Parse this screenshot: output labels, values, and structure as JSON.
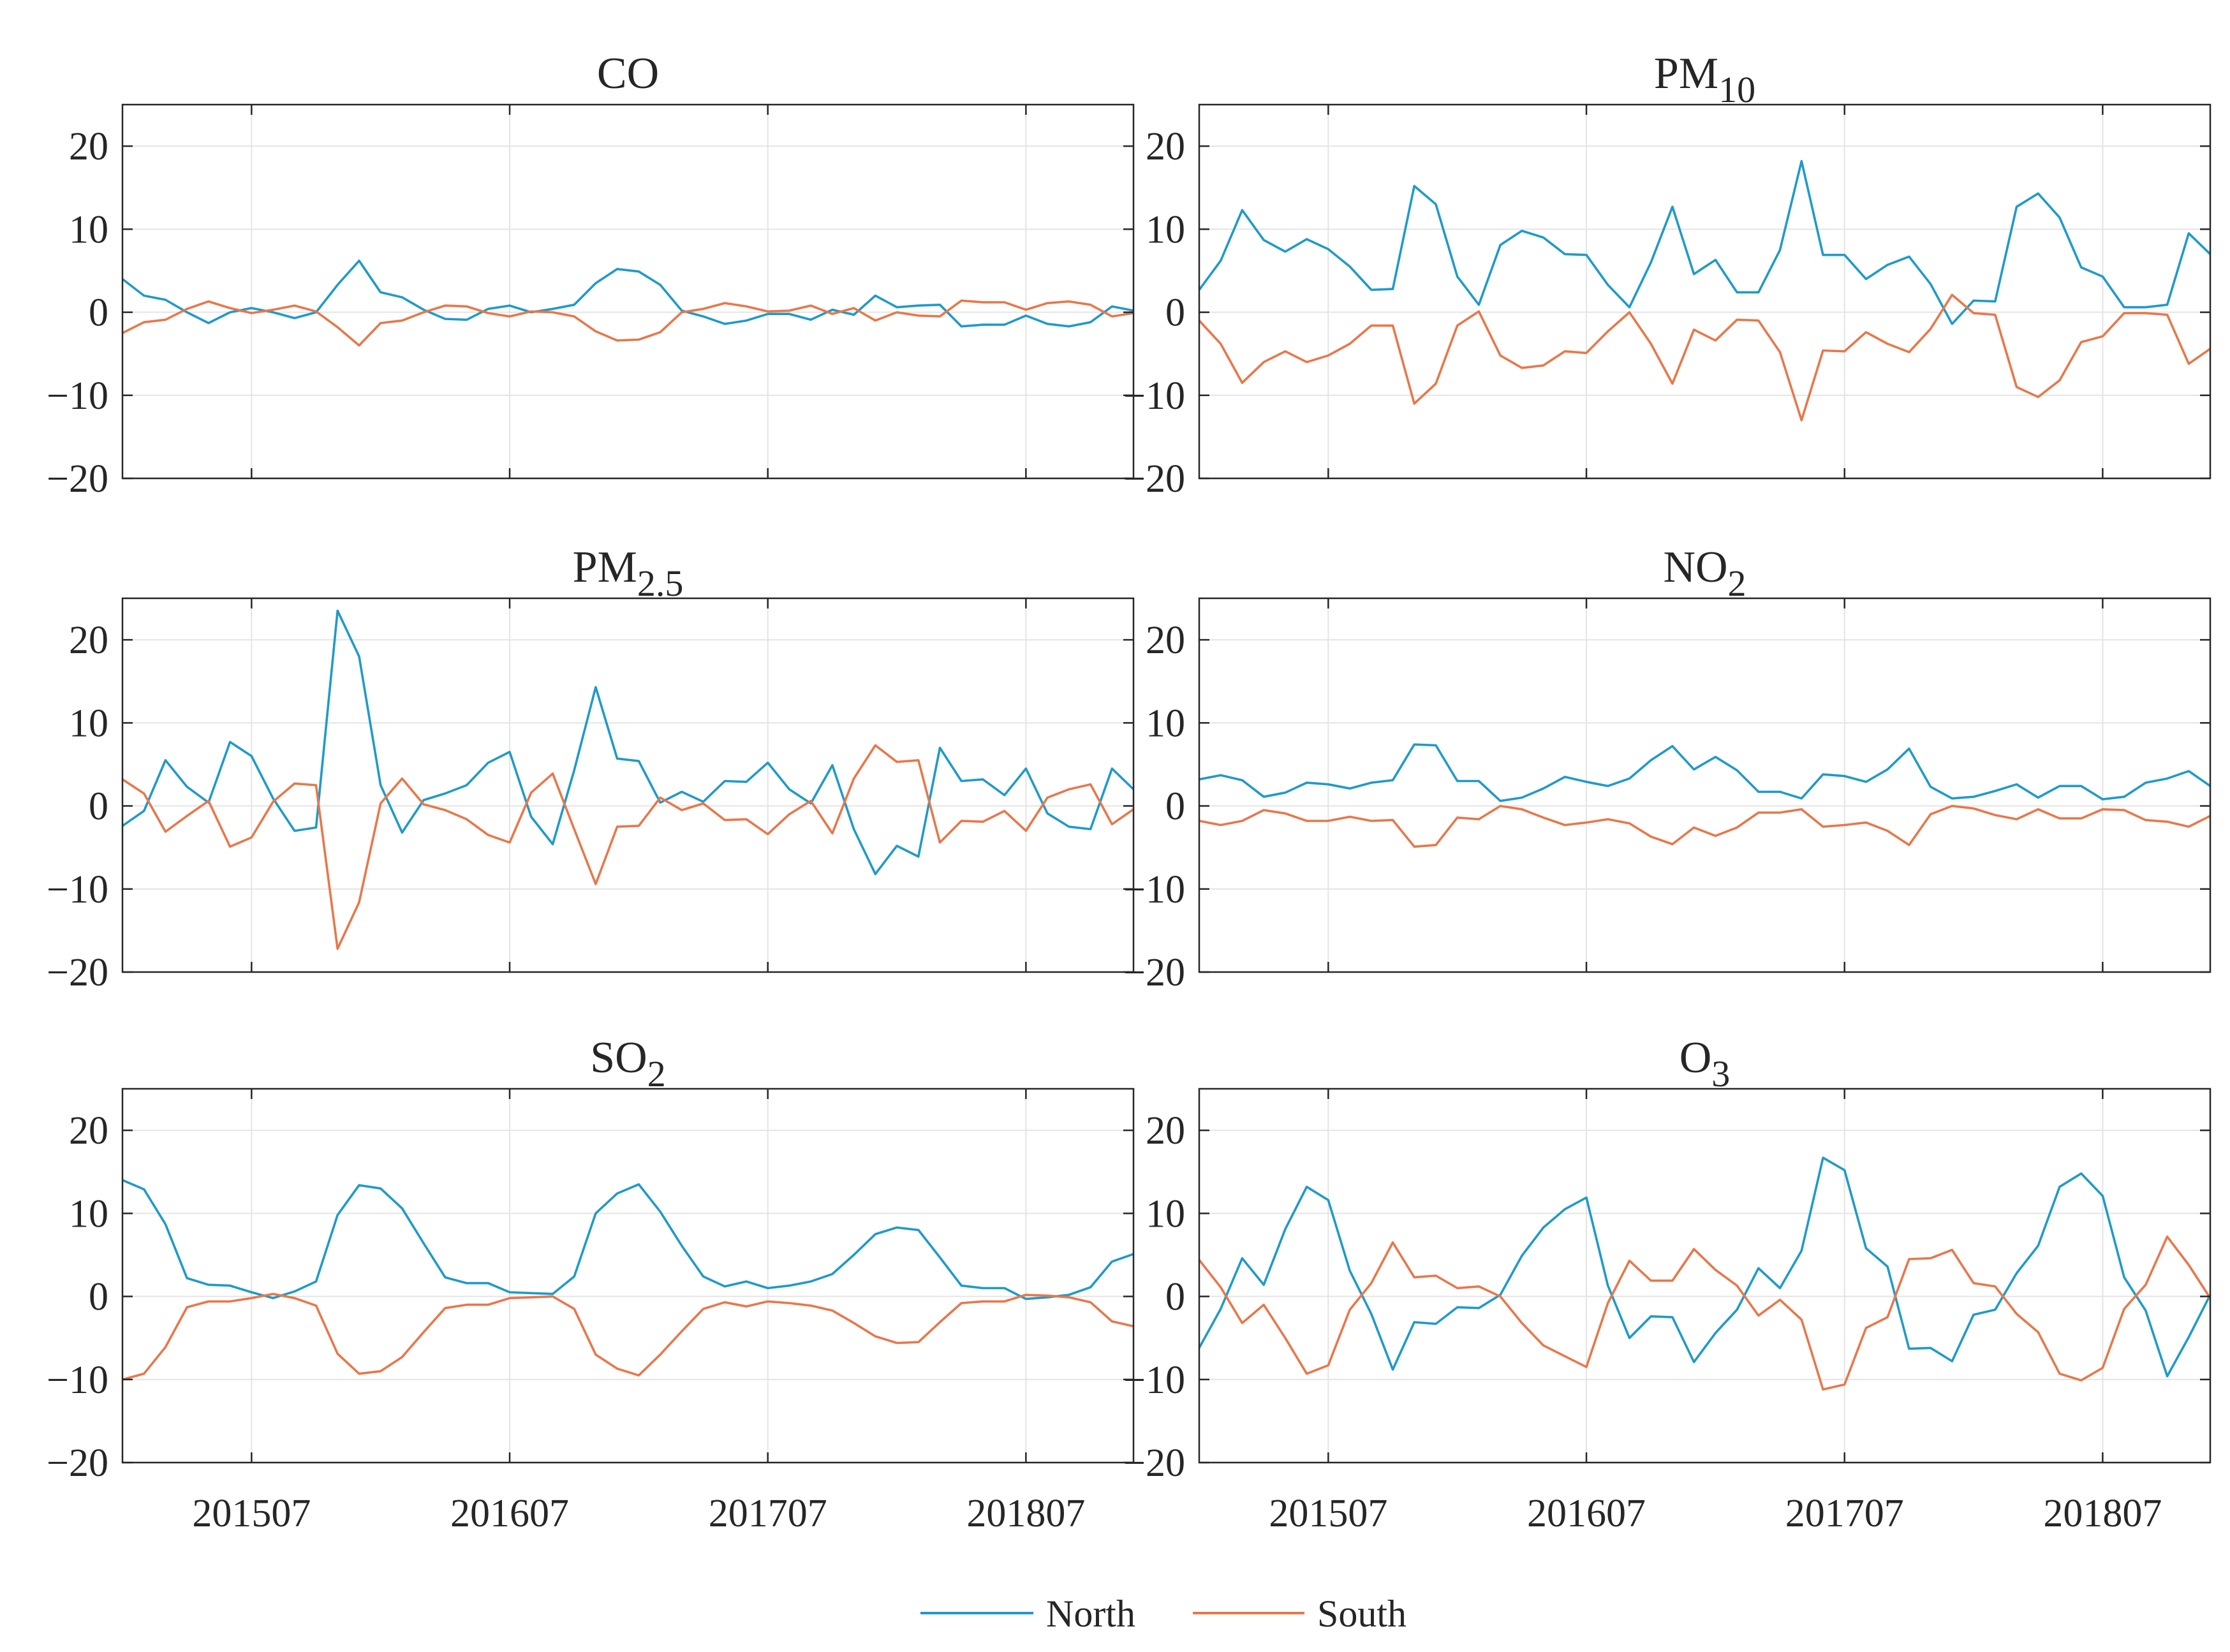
{
  "chart_data": {
    "type": "line",
    "layout": "3x2 grid of panels",
    "x": [
      201501,
      201502,
      201503,
      201504,
      201505,
      201506,
      201507,
      201508,
      201509,
      201510,
      201511,
      201512,
      201601,
      201602,
      201603,
      201604,
      201605,
      201606,
      201607,
      201608,
      201609,
      201610,
      201611,
      201612,
      201701,
      201702,
      201703,
      201704,
      201705,
      201706,
      201707,
      201708,
      201709,
      201710,
      201711,
      201712,
      201801,
      201802,
      201803,
      201804,
      201805,
      201806,
      201807,
      201808,
      201809,
      201810,
      201811,
      201812
    ],
    "x_ticks": [
      201507,
      201607,
      201707,
      201807
    ],
    "x_tick_labels": [
      "201507",
      "201607",
      "201707",
      "201807"
    ],
    "ylim": [
      -20,
      25
    ],
    "y_ticks": [
      20,
      10,
      0,
      -10,
      -20
    ],
    "y_tick_labels": [
      "20",
      "10",
      "0",
      "−10",
      "−20"
    ],
    "grid": true,
    "series_colors": {
      "North": "#1f9ac9",
      "South": "#e8774a"
    },
    "legend": {
      "placement": "bottom-center",
      "entries": [
        "North",
        "South"
      ]
    },
    "panels": [
      {
        "title": "CO",
        "title_sub": "",
        "series": [
          {
            "name": "North",
            "values": [
              4,
              2,
              1.5,
              0,
              -1.3,
              0,
              0.5,
              0,
              -0.7,
              0,
              3.3,
              6.2,
              2.4,
              1.8,
              0.3,
              -0.8,
              -0.9,
              0.4,
              0.8,
              0,
              0.4,
              0.9,
              3.5,
              5.2,
              4.9,
              3.3,
              0.2,
              -0.5,
              -1.4,
              -1,
              -0.2,
              -0.2,
              -0.9,
              0.3,
              -0.3,
              2,
              0.6,
              0.8,
              0.9,
              -1.7,
              -1.5,
              -1.5,
              -0.4,
              -1.4,
              -1.7,
              -1.2,
              0.7,
              0.2
            ]
          },
          {
            "name": "South",
            "values": [
              -2.5,
              -1.2,
              -0.9,
              0.4,
              1.3,
              0.5,
              -0.1,
              0.3,
              0.8,
              0.1,
              -1.8,
              -4,
              -1.3,
              -1,
              0,
              0.8,
              0.7,
              -0.1,
              -0.5,
              0.1,
              0,
              -0.5,
              -2.3,
              -3.4,
              -3.3,
              -2.4,
              0,
              0.4,
              1.1,
              0.7,
              0.1,
              0.2,
              0.8,
              -0.2,
              0.5,
              -1,
              0,
              -0.4,
              -0.5,
              1.4,
              1.2,
              1.2,
              0.3,
              1.1,
              1.3,
              0.9,
              -0.5,
              -0.1
            ]
          }
        ]
      },
      {
        "title": "PM",
        "title_sub": "10",
        "series": [
          {
            "name": "North",
            "values": [
              2.7,
              6.2,
              12.3,
              8.7,
              7.3,
              8.8,
              7.6,
              5.5,
              2.7,
              2.8,
              15.2,
              13,
              4.3,
              0.9,
              8.1,
              9.8,
              9,
              7,
              6.9,
              3.3,
              0.6,
              6,
              12.7,
              4.6,
              6.3,
              2.4,
              2.4,
              7.5,
              18.2,
              6.9,
              6.9,
              4,
              5.7,
              6.7,
              3.4,
              -1.4,
              1.4,
              1.3,
              12.7,
              14.3,
              11.4,
              5.4,
              4.3,
              0.6,
              0.6,
              0.9,
              9.5,
              7
            ]
          },
          {
            "name": "South",
            "values": [
              -1,
              -3.8,
              -8.5,
              -6,
              -4.7,
              -6,
              -5.2,
              -3.8,
              -1.6,
              -1.6,
              -11,
              -8.6,
              -1.6,
              0.1,
              -5.2,
              -6.7,
              -6.4,
              -4.7,
              -4.9,
              -2.3,
              0,
              -3.8,
              -8.6,
              -2.1,
              -3.4,
              -0.9,
              -1,
              -4.8,
              -13,
              -4.6,
              -4.7,
              -2.4,
              -3.8,
              -4.8,
              -2,
              2.1,
              -0.1,
              -0.3,
              -9,
              -10.2,
              -8.2,
              -3.6,
              -2.9,
              -0.1,
              -0.1,
              -0.3,
              -6.2,
              -4.4
            ]
          }
        ]
      },
      {
        "title": "PM",
        "title_sub": "2.5",
        "series": [
          {
            "name": "North",
            "values": [
              -2.4,
              -0.6,
              5.5,
              2.3,
              0.4,
              7.7,
              6,
              0.9,
              -3,
              -2.6,
              23.5,
              18,
              2.5,
              -3.2,
              0.7,
              1.5,
              2.5,
              5.2,
              6.5,
              -1.3,
              -4.6,
              4.3,
              14.3,
              5.7,
              5.4,
              0.4,
              1.7,
              0.5,
              3,
              2.9,
              5.2,
              2,
              0.3,
              4.9,
              -2.8,
              -8.2,
              -4.8,
              -6.1,
              7,
              3,
              3.2,
              1.3,
              4.5,
              -0.9,
              -2.5,
              -2.8,
              4.5,
              2
            ]
          },
          {
            "name": "South",
            "values": [
              3.2,
              1.5,
              -3.1,
              -1.2,
              0.6,
              -4.9,
              -3.8,
              0.5,
              2.7,
              2.5,
              -17.2,
              -11.6,
              0.3,
              3.3,
              0.2,
              -0.5,
              -1.6,
              -3.5,
              -4.4,
              1.6,
              3.9,
              -2.8,
              -9.4,
              -2.5,
              -2.4,
              1,
              -0.5,
              0.3,
              -1.7,
              -1.6,
              -3.4,
              -1,
              0.6,
              -3.3,
              3.3,
              7.3,
              5.3,
              5.5,
              -4.4,
              -1.8,
              -1.9,
              -0.6,
              -3,
              1,
              2,
              2.6,
              -2.2,
              -0.4
            ]
          }
        ]
      },
      {
        "title": "NO",
        "title_sub": "2",
        "series": [
          {
            "name": "North",
            "values": [
              3.2,
              3.7,
              3.1,
              1.1,
              1.6,
              2.8,
              2.6,
              2.1,
              2.8,
              3.1,
              7.4,
              7.3,
              3,
              3,
              0.6,
              1,
              2.1,
              3.5,
              2.9,
              2.4,
              3.3,
              5.5,
              7.2,
              4.4,
              5.9,
              4.3,
              1.7,
              1.7,
              0.9,
              3.8,
              3.6,
              2.9,
              4.4,
              6.9,
              2.3,
              0.9,
              1.1,
              1.8,
              2.6,
              1,
              2.4,
              2.4,
              0.8,
              1.1,
              2.8,
              3.3,
              4.2,
              2.4
            ]
          },
          {
            "name": "South",
            "values": [
              -1.8,
              -2.3,
              -1.8,
              -0.5,
              -0.9,
              -1.8,
              -1.8,
              -1.3,
              -1.8,
              -1.7,
              -4.9,
              -4.7,
              -1.4,
              -1.6,
              0,
              -0.4,
              -1.4,
              -2.3,
              -2,
              -1.6,
              -2.1,
              -3.7,
              -4.6,
              -2.6,
              -3.6,
              -2.6,
              -0.8,
              -0.8,
              -0.4,
              -2.5,
              -2.3,
              -2,
              -3,
              -4.7,
              -1,
              0,
              -0.3,
              -1.1,
              -1.6,
              -0.4,
              -1.5,
              -1.5,
              -0.4,
              -0.5,
              -1.7,
              -1.9,
              -2.5,
              -1.2
            ]
          }
        ]
      },
      {
        "title": "SO",
        "title_sub": "2",
        "series": [
          {
            "name": "North",
            "values": [
              14,
              12.9,
              8.7,
              2.2,
              1.4,
              1.3,
              0.5,
              -0.2,
              0.6,
              1.8,
              9.8,
              13.4,
              13,
              10.6,
              6.4,
              2.3,
              1.6,
              1.6,
              0.5,
              0.4,
              0.3,
              2.4,
              10,
              12.4,
              13.5,
              10.2,
              6.1,
              2.4,
              1.2,
              1.8,
              1,
              1.3,
              1.8,
              2.7,
              5,
              7.5,
              8.3,
              8,
              4.7,
              1.3,
              1,
              1,
              -0.3,
              -0.1,
              0.2,
              1.1,
              4.2,
              5.1
            ]
          },
          {
            "name": "South",
            "values": [
              -10,
              -9.3,
              -6.1,
              -1.3,
              -0.6,
              -0.6,
              -0.2,
              0.3,
              -0.2,
              -1.1,
              -6.9,
              -9.3,
              -9,
              -7.3,
              -4.3,
              -1.4,
              -1,
              -1,
              -0.2,
              -0.1,
              0,
              -1.5,
              -7,
              -8.7,
              -9.5,
              -7,
              -4.2,
              -1.5,
              -0.7,
              -1.2,
              -0.6,
              -0.8,
              -1.1,
              -1.7,
              -3.2,
              -4.8,
              -5.6,
              -5.5,
              -3.1,
              -0.8,
              -0.6,
              -0.6,
              0.2,
              0.1,
              -0.1,
              -0.7,
              -3,
              -3.6
            ]
          }
        ]
      },
      {
        "title": "O",
        "title_sub": "3",
        "series": [
          {
            "name": "North",
            "values": [
              -6.2,
              -1.5,
              4.6,
              1.4,
              8.1,
              13.2,
              11.6,
              3.1,
              -2.1,
              -8.8,
              -3.1,
              -3.3,
              -1.3,
              -1.4,
              0.2,
              4.9,
              8.3,
              10.5,
              11.9,
              1.3,
              -5,
              -2.4,
              -2.5,
              -7.9,
              -4.4,
              -1.6,
              3.4,
              1,
              5.5,
              16.7,
              15.2,
              5.8,
              3.6,
              -6.3,
              -6.2,
              -7.8,
              -2.2,
              -1.6,
              2.8,
              6.1,
              13.2,
              14.8,
              12.1,
              2.3,
              -1.7,
              -9.6,
              -4.9,
              0.2
            ]
          },
          {
            "name": "South",
            "values": [
              4.4,
              1.1,
              -3.2,
              -1,
              -5,
              -9.3,
              -8.3,
              -1.6,
              1.6,
              6.5,
              2.3,
              2.5,
              1,
              1.2,
              0,
              -3.2,
              -5.9,
              -7.2,
              -8.5,
              -0.8,
              4.3,
              1.9,
              1.9,
              5.7,
              3.2,
              1.3,
              -2.3,
              -0.4,
              -2.8,
              -11.2,
              -10.6,
              -3.8,
              -2.5,
              4.5,
              4.6,
              5.6,
              1.6,
              1.2,
              -2.1,
              -4.3,
              -9.3,
              -10.1,
              -8.6,
              -1.5,
              1.4,
              7.2,
              3.8,
              -0.2
            ]
          }
        ]
      }
    ]
  }
}
